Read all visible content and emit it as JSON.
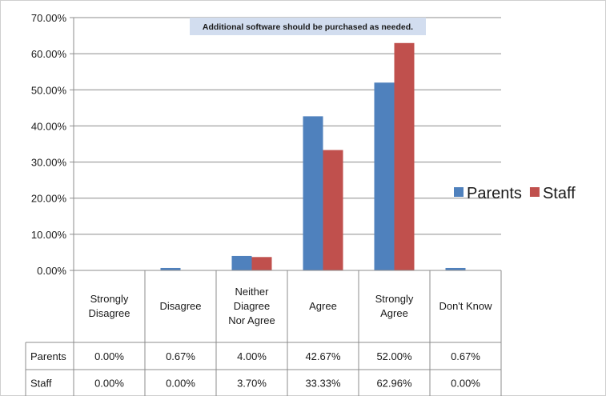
{
  "chart_data": {
    "type": "bar",
    "title": "Additional software should be purchased as needed.",
    "categories": [
      [
        "Strongly",
        "Disagree"
      ],
      [
        "Disagree"
      ],
      [
        "Neither",
        "Diagree",
        "Nor Agree"
      ],
      [
        "Agree"
      ],
      [
        "Strongly",
        "Agree"
      ],
      [
        "Don't Know"
      ]
    ],
    "series": [
      {
        "name": "Parents",
        "color": "#4f81bd",
        "values": [
          0.0,
          0.67,
          4.0,
          42.67,
          52.0,
          0.67
        ],
        "labels": [
          "0.00%",
          "0.67%",
          "4.00%",
          "42.67%",
          "52.00%",
          "0.67%"
        ]
      },
      {
        "name": "Staff",
        "color": "#c0504d",
        "values": [
          0.0,
          0.0,
          3.7,
          33.33,
          62.96,
          0.0
        ],
        "labels": [
          "0.00%",
          "0.00%",
          "3.70%",
          "33.33%",
          "62.96%",
          "0.00%"
        ]
      }
    ],
    "yticks": [
      "0.00%",
      "10.00%",
      "20.00%",
      "30.00%",
      "40.00%",
      "50.00%",
      "60.00%",
      "70.00%"
    ],
    "ylim": [
      0,
      70
    ],
    "grid": true,
    "legend": "right",
    "data_table": true
  }
}
